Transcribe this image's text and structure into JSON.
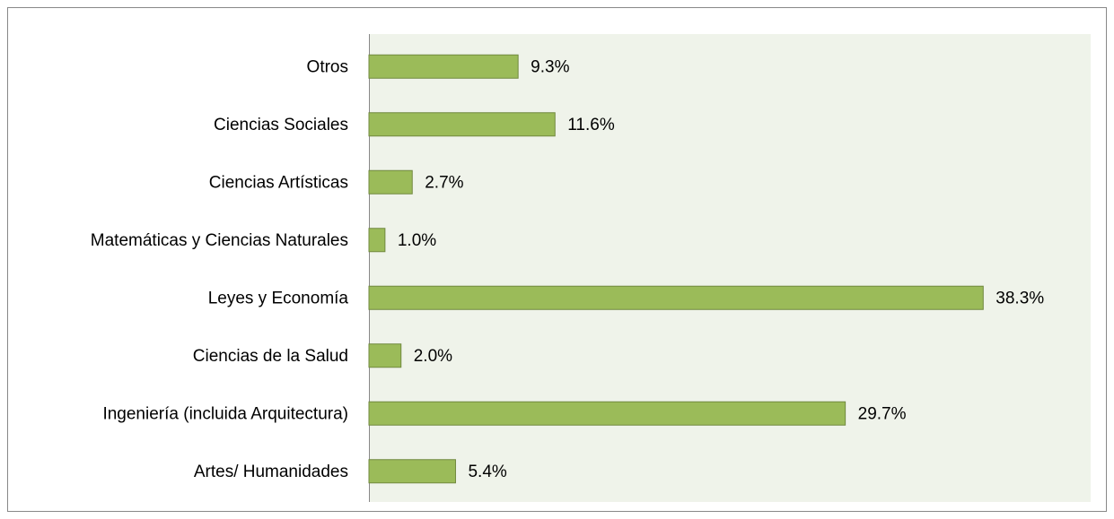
{
  "chart_data": {
    "type": "barh",
    "categories": [
      "Otros",
      "Ciencias Sociales",
      "Ciencias Artísticas",
      "Matemáticas y Ciencias Naturales",
      "Leyes y Economía",
      "Ciencias de la Salud",
      "Ingeniería (incluida Arquitectura)",
      "Artes/ Humanidades"
    ],
    "values": [
      9.3,
      11.6,
      2.7,
      1.0,
      38.3,
      2.0,
      29.7,
      5.4
    ],
    "value_labels": [
      "9.3%",
      "11.6%",
      "2.7%",
      "1.0%",
      "38.3%",
      "2.0%",
      "29.7%",
      "5.4%"
    ],
    "color": "#9bbb59",
    "xlim": [
      0,
      45
    ]
  }
}
